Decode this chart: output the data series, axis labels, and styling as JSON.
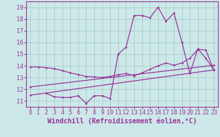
{
  "bg_color": "#cce8e8",
  "grid_color": "#aacccc",
  "line_color": "#993399",
  "xlabel": "Windchill (Refroidissement éolien,°C)",
  "ylabel_ticks": [
    11,
    12,
    13,
    14,
    15,
    16,
    17,
    18,
    19
  ],
  "xlim": [
    -0.5,
    23.5
  ],
  "ylim": [
    10.5,
    19.5
  ],
  "line1_x": [
    0,
    1,
    2,
    3,
    4,
    5,
    6,
    7,
    8,
    9,
    10,
    11,
    12,
    13,
    14,
    15,
    16,
    17,
    18,
    19,
    20,
    21,
    22,
    23
  ],
  "line1_y": [
    13.9,
    13.9,
    13.85,
    13.75,
    13.6,
    13.4,
    13.25,
    13.1,
    13.05,
    13.0,
    13.1,
    13.25,
    13.35,
    13.15,
    13.4,
    13.7,
    14.0,
    14.25,
    14.05,
    14.25,
    14.65,
    15.4,
    15.35,
    13.65
  ],
  "line2_x": [
    2,
    3,
    4,
    5,
    6,
    7,
    8,
    9,
    10,
    11,
    12,
    13,
    14,
    15,
    16,
    17,
    18,
    19,
    20,
    21,
    22,
    23
  ],
  "line2_y": [
    11.65,
    11.35,
    11.3,
    11.3,
    11.45,
    10.8,
    11.45,
    11.45,
    11.2,
    15.0,
    15.6,
    18.3,
    18.3,
    18.1,
    19.0,
    17.8,
    18.5,
    16.0,
    13.35,
    15.45,
    14.65,
    13.65
  ],
  "line3_x": [
    0,
    23
  ],
  "line3_y": [
    11.5,
    13.65
  ],
  "line4_x": [
    0,
    23
  ],
  "line4_y": [
    12.2,
    14.05
  ],
  "markersize": 1.8,
  "linewidth": 0.9,
  "tick_fontsize": 6,
  "xlabel_fontsize": 7
}
